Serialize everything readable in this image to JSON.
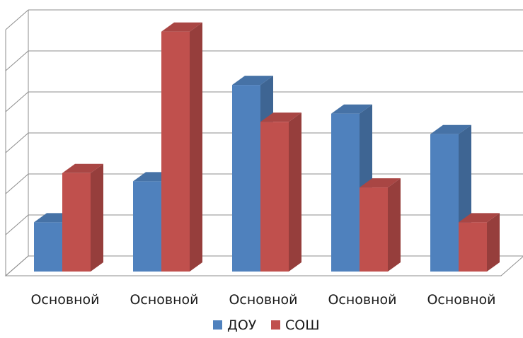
{
  "chart_data": {
    "type": "bar",
    "categories": [
      "Основной",
      "Основной",
      "Основной",
      "Основной",
      "Основной"
    ],
    "series": [
      {
        "name": "ДОУ",
        "color": "#4f81bd",
        "values": [
          1.2,
          2.2,
          4.55,
          3.85,
          3.35
        ]
      },
      {
        "name": "СОШ",
        "color": "#c0504d",
        "values": [
          2.4,
          5.85,
          3.65,
          2.05,
          1.2
        ]
      }
    ],
    "ylim": [
      0,
      6
    ],
    "grid": true,
    "legend_position": "bottom",
    "view": "3d"
  }
}
